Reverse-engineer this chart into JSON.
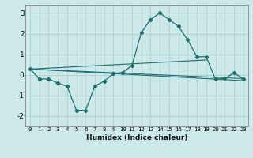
{
  "xlabel": "Humidex (Indice chaleur)",
  "xlim": [
    -0.5,
    23.5
  ],
  "ylim": [
    -2.5,
    3.4
  ],
  "yticks": [
    -2,
    -1,
    0,
    1,
    2,
    3
  ],
  "xticks": [
    0,
    1,
    2,
    3,
    4,
    5,
    6,
    7,
    8,
    9,
    10,
    11,
    12,
    13,
    14,
    15,
    16,
    17,
    18,
    19,
    20,
    21,
    22,
    23
  ],
  "bg_color": "#cce8e8",
  "grid_color": "#aacccc",
  "line_color": "#1a6e6e",
  "line1_x": [
    0,
    1,
    2,
    3,
    4,
    5,
    6,
    7,
    8,
    9,
    10,
    11,
    12,
    13,
    14,
    15,
    16,
    17,
    18,
    19,
    20,
    21,
    22,
    23
  ],
  "line1_y": [
    0.3,
    -0.2,
    -0.2,
    -0.4,
    -0.55,
    -1.72,
    -1.72,
    -0.55,
    -0.3,
    0.05,
    0.12,
    0.45,
    2.05,
    2.68,
    3.0,
    2.68,
    2.35,
    1.7,
    0.88,
    0.88,
    -0.22,
    -0.18,
    0.1,
    -0.2
  ],
  "line2_x": [
    0,
    19
  ],
  "line2_y": [
    0.28,
    0.72
  ],
  "line3_x": [
    0,
    23
  ],
  "line3_y": [
    0.28,
    -0.18
  ],
  "line4_x": [
    0,
    23
  ],
  "line4_y": [
    0.28,
    -0.28
  ]
}
